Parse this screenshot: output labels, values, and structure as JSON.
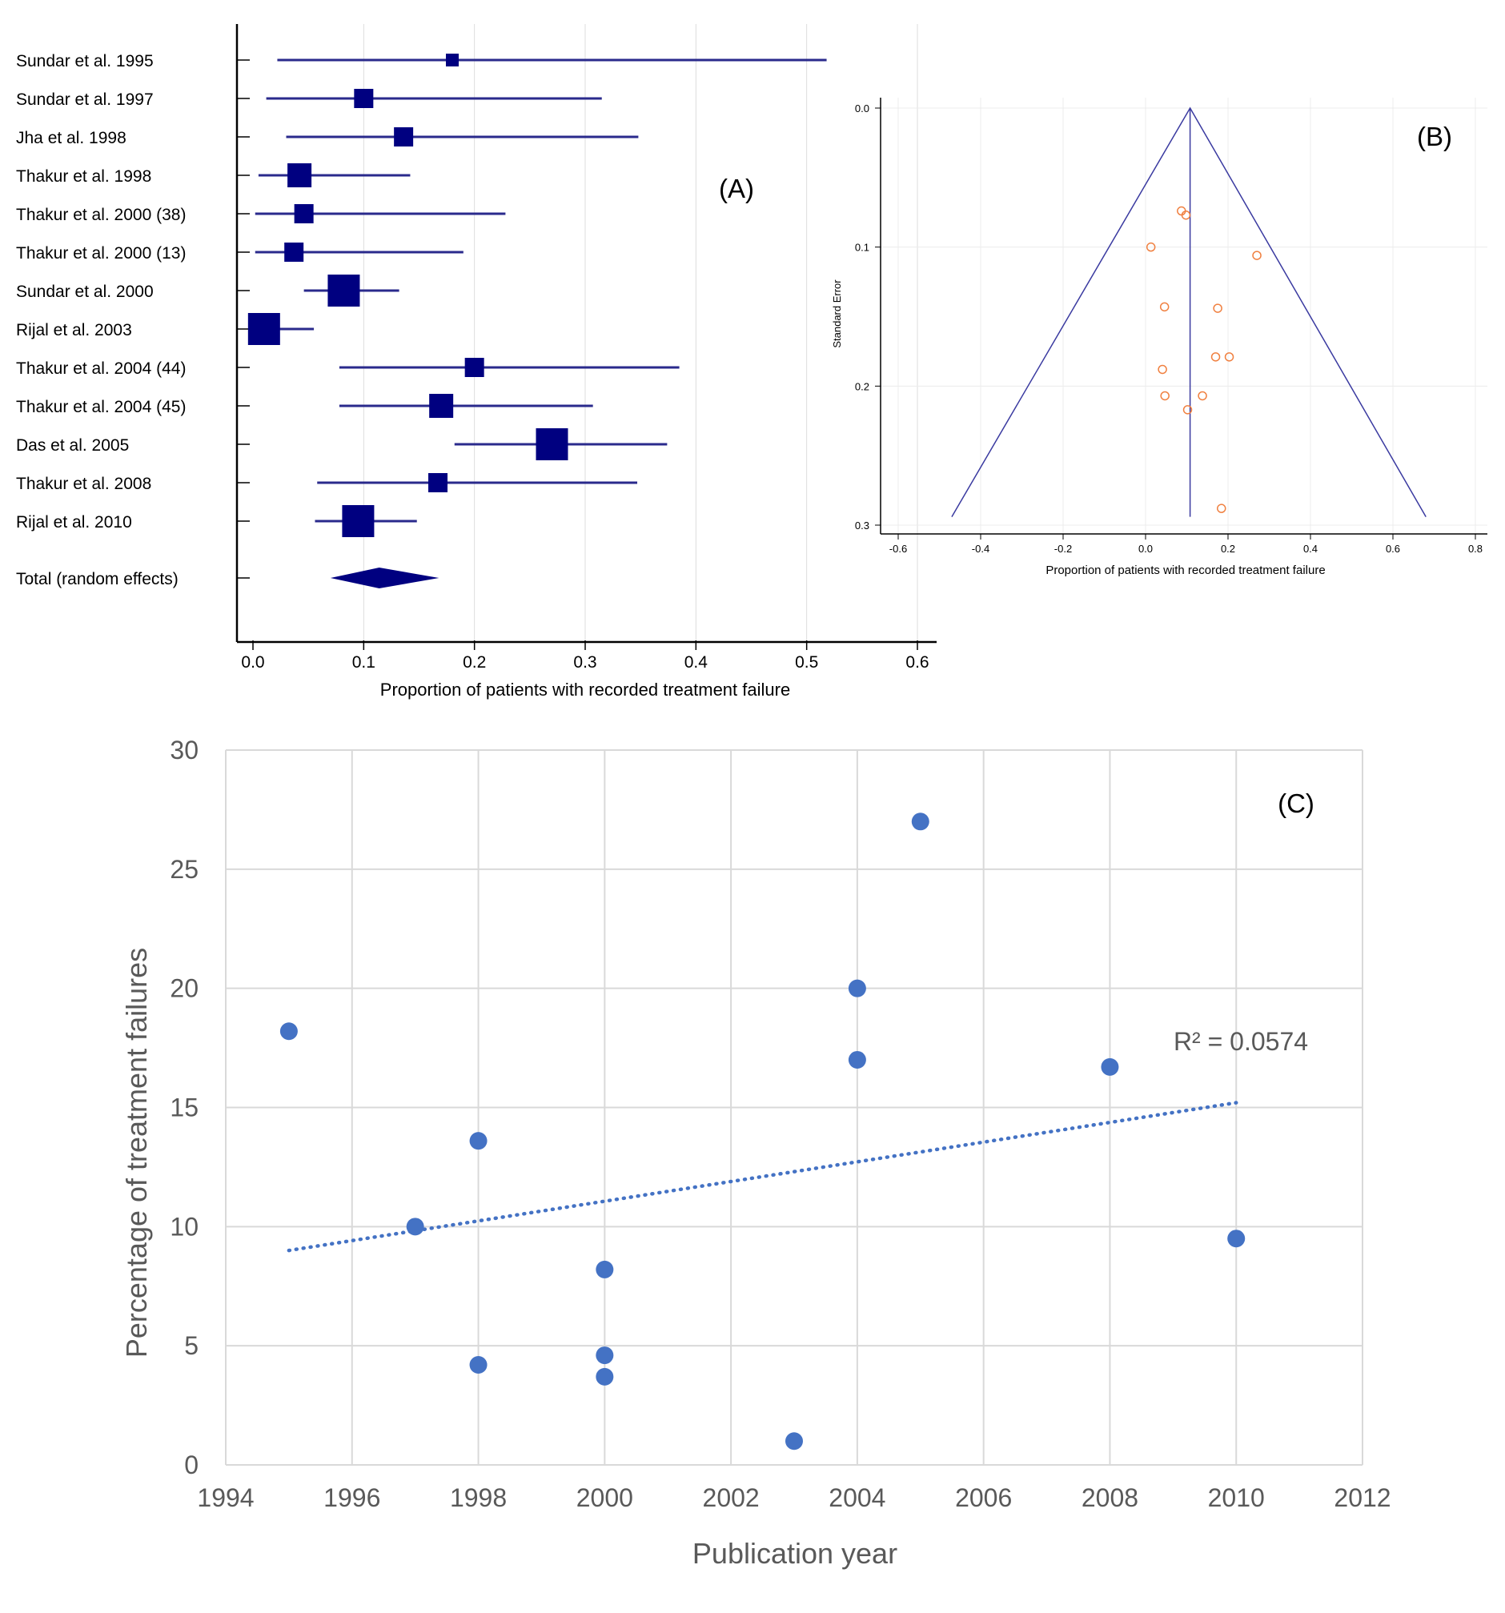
{
  "chart_data": [
    {
      "type": "forest",
      "panel_label": "(A)",
      "xlabel": "Proportion of patients with recorded treatment failure",
      "xlim": [
        0,
        0.6
      ],
      "x_ticks": [
        "0.0",
        "0.1",
        "0.2",
        "0.3",
        "0.4",
        "0.5",
        "0.6"
      ],
      "studies": [
        {
          "label": "Sundar et al. 1995",
          "estimate": 0.18,
          "ci_low": 0.022,
          "ci_high": 0.518,
          "weight": 1
        },
        {
          "label": "Sundar et al. 1997",
          "estimate": 0.1,
          "ci_low": 0.012,
          "ci_high": 0.315,
          "weight": 2
        },
        {
          "label": "Jha et al. 1998",
          "estimate": 0.136,
          "ci_low": 0.03,
          "ci_high": 0.348,
          "weight": 2
        },
        {
          "label": "Thakur et al. 1998",
          "estimate": 0.042,
          "ci_low": 0.005,
          "ci_high": 0.142,
          "weight": 3
        },
        {
          "label": "Thakur et al. 2000 (38)",
          "estimate": 0.046,
          "ci_low": 0.002,
          "ci_high": 0.228,
          "weight": 2
        },
        {
          "label": "Thakur et al. 2000 (13)",
          "estimate": 0.037,
          "ci_low": 0.002,
          "ci_high": 0.19,
          "weight": 2
        },
        {
          "label": "Sundar et al. 2000",
          "estimate": 0.082,
          "ci_low": 0.046,
          "ci_high": 0.132,
          "weight": 4
        },
        {
          "label": "Rijal et al. 2003",
          "estimate": 0.01,
          "ci_low": 0.0,
          "ci_high": 0.055,
          "weight": 4
        },
        {
          "label": "Thakur et al. 2004 (44)",
          "estimate": 0.2,
          "ci_low": 0.078,
          "ci_high": 0.385,
          "weight": 2
        },
        {
          "label": "Thakur et al. 2004 (45)",
          "estimate": 0.17,
          "ci_low": 0.078,
          "ci_high": 0.307,
          "weight": 3
        },
        {
          "label": "Das et al. 2005",
          "estimate": 0.27,
          "ci_low": 0.182,
          "ci_high": 0.374,
          "weight": 4
        },
        {
          "label": "Thakur et al. 2008",
          "estimate": 0.167,
          "ci_low": 0.058,
          "ci_high": 0.347,
          "weight": 2
        },
        {
          "label": "Rijal et al. 2010",
          "estimate": 0.095,
          "ci_low": 0.056,
          "ci_high": 0.148,
          "weight": 4
        }
      ],
      "total": {
        "label": "Total (random effects)",
        "estimate": 0.114,
        "ci_low": 0.07,
        "ci_high": 0.168
      }
    },
    {
      "type": "funnel",
      "panel_label": "(B)",
      "xlabel": "Proportion of patients with recorded treatment failure",
      "ylabel": "Standard Error",
      "xlim": [
        -0.6,
        0.8
      ],
      "ylim": [
        0,
        0.3
      ],
      "y_inverted": true,
      "x_ticks": [
        "-0.6",
        "-0.4",
        "-0.2",
        "0.0",
        "0.2",
        "0.4",
        "0.6",
        "0.8"
      ],
      "y_ticks": [
        "0.0",
        "0.1",
        "0.2",
        "0.3"
      ],
      "pooled_estimate": 0.108,
      "funnel_limits": [
        [
          -0.47,
          0.294
        ],
        [
          0.108,
          0.0
        ],
        [
          0.68,
          0.294
        ]
      ],
      "points": [
        {
          "x": 0.087,
          "y": 0.074
        },
        {
          "x": 0.098,
          "y": 0.077
        },
        {
          "x": 0.013,
          "y": 0.1
        },
        {
          "x": 0.27,
          "y": 0.106
        },
        {
          "x": 0.046,
          "y": 0.143
        },
        {
          "x": 0.175,
          "y": 0.144
        },
        {
          "x": 0.17,
          "y": 0.179
        },
        {
          "x": 0.203,
          "y": 0.179
        },
        {
          "x": 0.041,
          "y": 0.188
        },
        {
          "x": 0.047,
          "y": 0.207
        },
        {
          "x": 0.138,
          "y": 0.207
        },
        {
          "x": 0.102,
          "y": 0.217
        },
        {
          "x": 0.184,
          "y": 0.288
        }
      ],
      "colors": {
        "points": "#f08040",
        "lines": "#3a3aa0"
      }
    },
    {
      "type": "scatter",
      "panel_label": "(C)",
      "xlabel": "Publication year",
      "ylabel": "Percentage of treatment failures",
      "xlim": [
        1994,
        2012
      ],
      "ylim": [
        0,
        30
      ],
      "x_ticks": [
        "1994",
        "1996",
        "1998",
        "2000",
        "2002",
        "2004",
        "2006",
        "2008",
        "2010",
        "2012"
      ],
      "y_ticks": [
        "0",
        "5",
        "10",
        "15",
        "20",
        "25",
        "30"
      ],
      "grid": true,
      "points": [
        {
          "x": 1995,
          "y": 18.2
        },
        {
          "x": 1997,
          "y": 10.0
        },
        {
          "x": 1998,
          "y": 13.6
        },
        {
          "x": 1998,
          "y": 4.2
        },
        {
          "x": 2000,
          "y": 8.2
        },
        {
          "x": 2000,
          "y": 4.6
        },
        {
          "x": 2000,
          "y": 3.7
        },
        {
          "x": 2003,
          "y": 1.0
        },
        {
          "x": 2004,
          "y": 20.0
        },
        {
          "x": 2004,
          "y": 17.0
        },
        {
          "x": 2005,
          "y": 27.0
        },
        {
          "x": 2008,
          "y": 16.7
        },
        {
          "x": 2010,
          "y": 9.5
        }
      ],
      "trendline": {
        "x": [
          1995,
          2010
        ],
        "y": [
          9.0,
          15.2
        ],
        "style": "dotted"
      },
      "annotation": "R² = 0.0574",
      "colors": {
        "points": "#4472c4",
        "grid": "#d9d9d9",
        "text": "#595959"
      }
    }
  ]
}
